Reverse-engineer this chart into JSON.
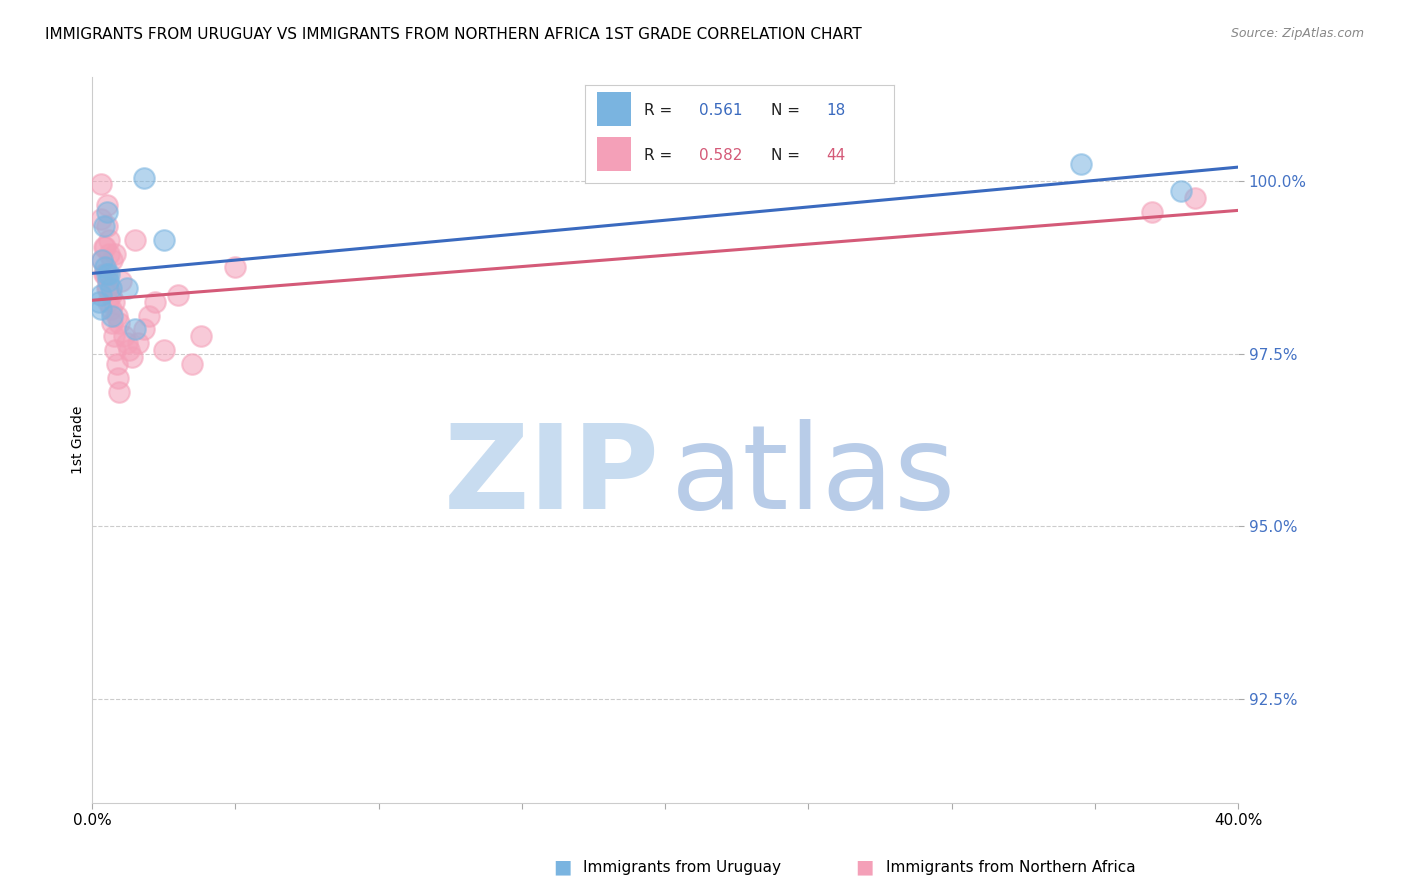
{
  "title": "IMMIGRANTS FROM URUGUAY VS IMMIGRANTS FROM NORTHERN AFRICA 1ST GRADE CORRELATION CHART",
  "source": "Source: ZipAtlas.com",
  "ylabel": "1st Grade",
  "y_ticks": [
    92.5,
    95.0,
    97.5,
    100.0
  ],
  "y_tick_labels": [
    "92.5%",
    "95.0%",
    "97.5%",
    "100.0%"
  ],
  "xlim": [
    0.0,
    40.0
  ],
  "ylim": [
    91.0,
    101.5
  ],
  "legend_r1": "0.561",
  "legend_n1": "18",
  "legend_r2": "0.582",
  "legend_n2": "44",
  "color_uruguay": "#7ab4e0",
  "color_northern_africa": "#f4a0b8",
  "color_blue_line": "#3a6abf",
  "color_pink_line": "#d45a78",
  "color_ytick": "#4472c4",
  "watermark_zip": "#c8dcf0",
  "watermark_atlas": "#b8cce8",
  "uru_x": [
    1.8,
    0.5,
    0.4,
    2.5,
    0.35,
    0.45,
    0.5,
    0.55,
    0.65,
    0.3,
    0.25,
    0.3,
    1.2,
    1.5,
    0.7,
    0.6,
    34.5,
    38.0
  ],
  "uru_y": [
    100.05,
    99.55,
    99.35,
    99.15,
    98.85,
    98.75,
    98.65,
    98.55,
    98.45,
    98.35,
    98.25,
    98.15,
    98.45,
    97.85,
    98.05,
    98.65,
    100.25,
    99.85
  ],
  "naf_x": [
    0.3,
    0.5,
    0.5,
    0.4,
    0.6,
    0.7,
    0.8,
    1.5,
    1.0,
    0.45,
    0.55,
    0.65,
    0.75,
    0.85,
    0.95,
    1.1,
    1.2,
    1.3,
    1.4,
    1.6,
    1.8,
    2.0,
    2.2,
    2.5,
    3.0,
    3.5,
    3.8,
    5.0,
    0.3,
    0.35,
    0.4,
    0.45,
    0.5,
    0.55,
    0.6,
    0.65,
    0.7,
    0.75,
    0.8,
    0.85,
    0.9,
    0.95,
    38.5,
    37.0
  ],
  "naf_y": [
    99.95,
    99.65,
    99.35,
    99.05,
    99.15,
    98.85,
    98.95,
    99.15,
    98.55,
    98.65,
    98.45,
    98.35,
    98.25,
    98.05,
    97.95,
    97.75,
    97.65,
    97.55,
    97.45,
    97.65,
    97.85,
    98.05,
    98.25,
    97.55,
    98.35,
    97.35,
    97.75,
    98.75,
    99.45,
    98.85,
    98.65,
    99.05,
    98.45,
    98.25,
    98.95,
    98.15,
    97.95,
    97.75,
    97.55,
    97.35,
    97.15,
    96.95,
    99.75,
    99.55
  ]
}
